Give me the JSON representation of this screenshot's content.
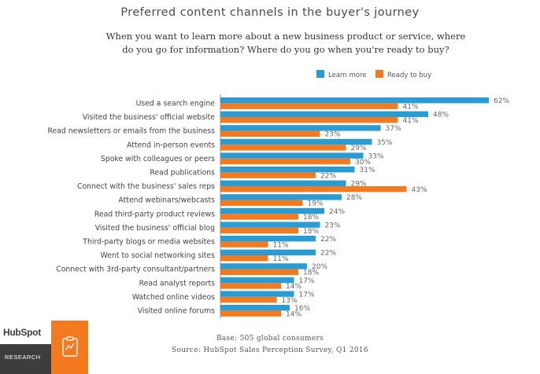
{
  "page": {
    "title": "Preferred content channels in the buyer's journey",
    "subtitle": "When you want to learn more about a new business product or service, where do you go for information? Where do you go when you're ready to buy?",
    "base_note": "Base: 505 global consumers",
    "source_note": "Source: HubSpot Sales Perception Survey, Q1 2016",
    "brand_name": "HubSpot",
    "brand_sub": "RESEARCH"
  },
  "colors": {
    "learn": "#2b9bd4",
    "buy": "#f47a20",
    "axis": "#999999",
    "label": "#444444"
  },
  "chart_data": {
    "type": "bar",
    "orientation": "horizontal",
    "title": "Preferred content channels in the buyer's journey",
    "legend_position": "top-right",
    "xlim": [
      0,
      62
    ],
    "value_suffix": "%",
    "categories": [
      "Used a search engine",
      "Visited the business' official website",
      "Read newsletters or emails from the business",
      "Attend in-person events",
      "Spoke with colleagues or peers",
      "Read publications",
      "Connect with the business' sales reps",
      "Attend webinars/webcasts",
      "Read third-party product reviews",
      "Visited the business' official blog",
      "Third-party blogs or media websites",
      "Went to social networking sites",
      "Connect with 3rd-party consultant/partners",
      "Read analyst reports",
      "Watched online videos",
      "Visited online forums"
    ],
    "series": [
      {
        "name": "Learn more",
        "values": [
          62,
          48,
          37,
          35,
          33,
          31,
          29,
          28,
          24,
          23,
          22,
          22,
          20,
          17,
          17,
          16
        ]
      },
      {
        "name": "Ready to buy",
        "values": [
          41,
          41,
          23,
          29,
          30,
          22,
          43,
          19,
          18,
          18,
          11,
          11,
          18,
          14,
          13,
          14
        ]
      }
    ]
  }
}
